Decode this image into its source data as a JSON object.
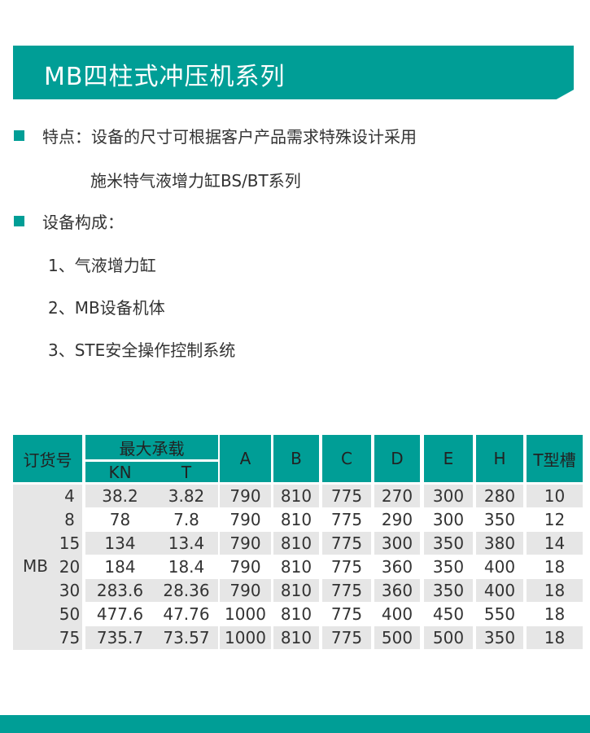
{
  "title": "MB四柱式冲压机系列",
  "features": {
    "line1": "特点：设备的尺寸可根据客户产品需求特殊设计采用",
    "line2": "施米特气液增力缸BS/BT系列"
  },
  "composition": {
    "heading": "设备构成：",
    "items": [
      "1、气液增力缸",
      "2、MB设备机体",
      "3、STE安全操作控制系统"
    ]
  },
  "table": {
    "headers": {
      "order_no": "订货号",
      "max_load": "最大承载",
      "kn": "KN",
      "t": "T",
      "cols": [
        "A",
        "B",
        "C",
        "D",
        "E",
        "H",
        "T型槽"
      ]
    },
    "series": "MB",
    "rows": [
      [
        "4",
        "38.2",
        "3.82",
        "790",
        "810",
        "775",
        "270",
        "300",
        "280",
        "10"
      ],
      [
        "8",
        "78",
        "7.8",
        "790",
        "810",
        "775",
        "290",
        "300",
        "350",
        "12"
      ],
      [
        "15",
        "134",
        "13.4",
        "790",
        "810",
        "775",
        "300",
        "350",
        "380",
        "14"
      ],
      [
        "20",
        "184",
        "18.4",
        "790",
        "810",
        "775",
        "360",
        "350",
        "400",
        "18"
      ],
      [
        "30",
        "283.6",
        "28.36",
        "790",
        "810",
        "775",
        "360",
        "350",
        "400",
        "18"
      ],
      [
        "50",
        "477.6",
        "47.76",
        "1000",
        "810",
        "775",
        "400",
        "450",
        "550",
        "18"
      ],
      [
        "75",
        "735.7",
        "73.57",
        "1000",
        "810",
        "775",
        "500",
        "500",
        "350",
        "18"
      ]
    ]
  },
  "colors": {
    "accent": "#009e96",
    "row_gray": "#e6e6e6"
  }
}
